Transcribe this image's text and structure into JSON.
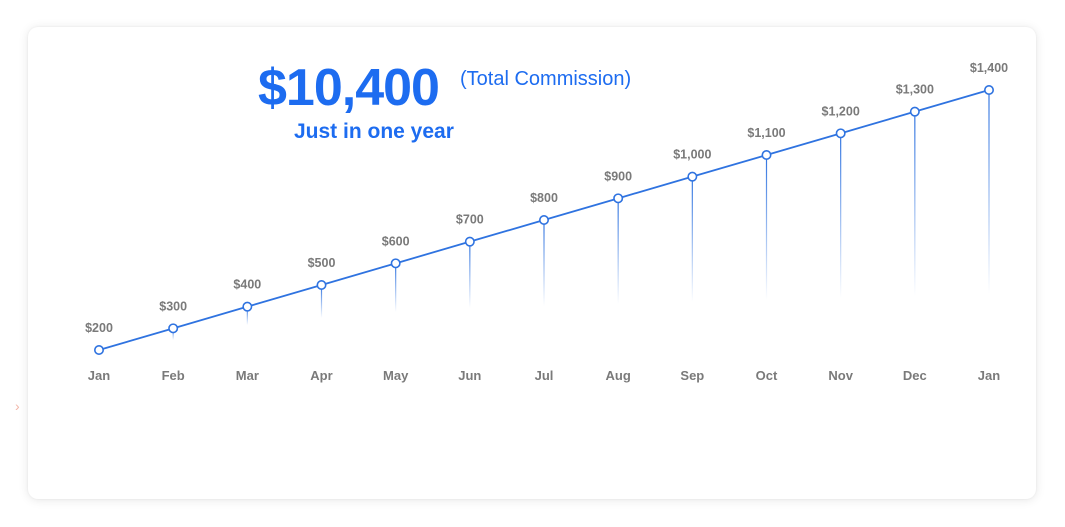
{
  "headline": {
    "total_amount": "$10,400",
    "total_caption": "(Total Commission)",
    "subtitle": "Just in one year"
  },
  "colors": {
    "accent": "#1d6cf0",
    "line": "#2f73e0",
    "label": "#7a7a7a",
    "side_arrow": "#f2b6a8"
  },
  "side_arrow_icon": "chevron-right-icon",
  "chart_data": {
    "type": "line",
    "title": "",
    "xlabel": "",
    "ylabel": "",
    "categories": [
      "Jan",
      "Feb",
      "Mar",
      "Apr",
      "May",
      "Jun",
      "Jul",
      "Aug",
      "Sep",
      "Oct",
      "Nov",
      "Dec",
      "Jan"
    ],
    "values": [
      200,
      300,
      400,
      500,
      600,
      700,
      800,
      900,
      1000,
      1100,
      1200,
      1300,
      1400
    ],
    "data_labels": [
      "$200",
      "$300",
      "$400",
      "$500",
      "$600",
      "$700",
      "$800",
      "$900",
      "$1,000",
      "$1,100",
      "$1,200",
      "$1,300",
      "$1,400"
    ],
    "ylim": [
      200,
      1400
    ],
    "grid": false,
    "legend": "none",
    "drop_lines": true
  }
}
